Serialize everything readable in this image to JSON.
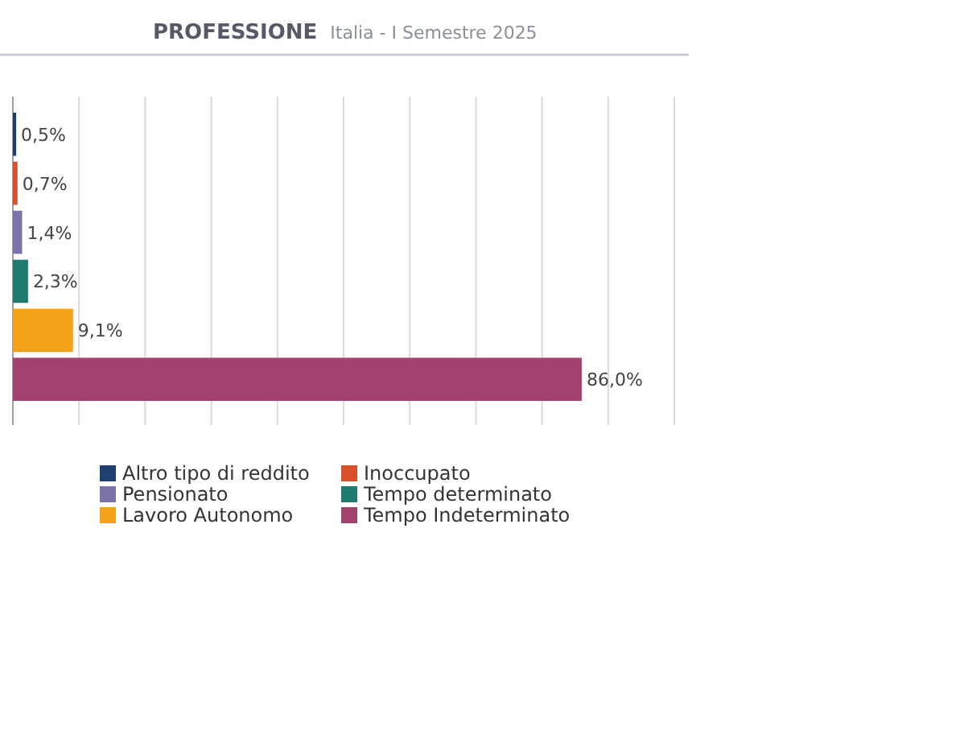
{
  "chart_data": {
    "type": "bar",
    "orientation": "horizontal",
    "stacked": true,
    "title": "PROFESSIONE",
    "subtitle": "Italia - I Semestre 2025",
    "categories": [
      null,
      null,
      null,
      null,
      null,
      null
    ],
    "series": [
      {
        "name": "Altro tipo di reddito",
        "color": "#1f3f6e",
        "values": [
          0.5,
          null,
          null,
          null,
          null,
          null
        ],
        "value_labels": [
          "0,5%",
          null,
          null,
          null,
          null,
          null
        ]
      },
      {
        "name": "Inoccupato",
        "color": "#d9502a",
        "values": [
          null,
          0.7,
          null,
          null,
          null,
          null
        ],
        "value_labels": [
          null,
          "0,7%",
          null,
          null,
          null,
          null
        ]
      },
      {
        "name": "Pensionato",
        "color": "#7b74a8",
        "values": [
          null,
          null,
          1.4,
          null,
          null,
          null
        ],
        "value_labels": [
          null,
          null,
          "1,4%",
          null,
          null,
          null
        ]
      },
      {
        "name": "Tempo determinato",
        "color": "#1f7a70",
        "values": [
          null,
          null,
          null,
          2.3,
          null,
          null
        ],
        "value_labels": [
          null,
          null,
          null,
          "2,3%",
          null,
          null
        ]
      },
      {
        "name": "Lavoro Autonomo",
        "color": "#f5a21b",
        "values": [
          null,
          null,
          null,
          null,
          9.1,
          null
        ],
        "value_labels": [
          null,
          null,
          null,
          null,
          "9,1%",
          null
        ]
      },
      {
        "name": "Tempo Indeterminato",
        "color": "#a2426e",
        "values": [
          null,
          null,
          null,
          null,
          null,
          86.0
        ],
        "value_labels": [
          null,
          null,
          null,
          null,
          null,
          "86,0%"
        ]
      }
    ],
    "xlim": [
      0,
      100
    ],
    "xticks": [
      {
        "value": 0,
        "label": null
      },
      {
        "value": 10,
        "label": null
      },
      {
        "value": 20,
        "label": null
      },
      {
        "value": 30,
        "label": null
      },
      {
        "value": 40,
        "label": null
      },
      {
        "value": 50,
        "label": null
      },
      {
        "value": 60,
        "label": null
      },
      {
        "value": 70,
        "label": null
      },
      {
        "value": 80,
        "label": null
      },
      {
        "value": 90,
        "label": null
      },
      {
        "value": 100,
        "label": null
      }
    ],
    "grid": "x",
    "legend": "bottom"
  }
}
